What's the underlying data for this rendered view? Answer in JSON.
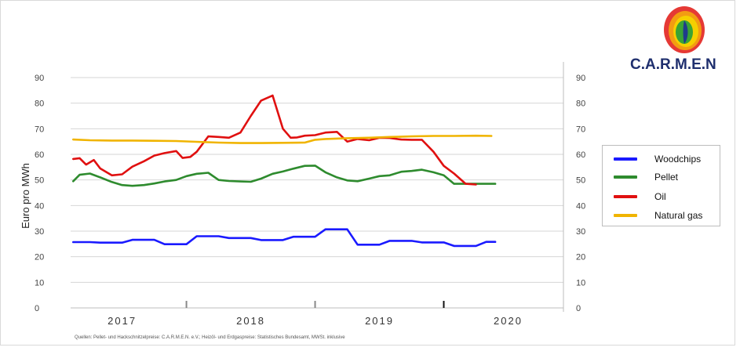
{
  "logo": {
    "text": "C.A.R.M.E.N",
    "colors": [
      "#e53935",
      "#f39c12",
      "#f5d000",
      "#3aa335",
      "#1f3b8c"
    ]
  },
  "chart_data": {
    "type": "line",
    "title": "",
    "xlabel": "",
    "ylabel": "Euro pro MWh",
    "ylim": [
      0,
      90
    ],
    "yticks": [
      0,
      10,
      20,
      30,
      40,
      50,
      60,
      70,
      80,
      90
    ],
    "y_axis_right": true,
    "grid": true,
    "legend_position": "right",
    "x_year_labels": [
      "2017",
      "2018",
      "2019",
      "2020"
    ],
    "x_range": [
      2016.6,
      2020.43
    ],
    "source_note": "Quellen: Pellet- und Hackschnitzelpreise: C.A.R.M.E.N. e.V.; Heizöl- und Erdgaspreise: Statistisches Bundesamt, MWSt. inklusive",
    "series": [
      {
        "name": "Woodchips",
        "color": "#1a1aff",
        "x": [
          2016.62,
          2016.75,
          2016.83,
          2016.92,
          2017.0,
          2017.08,
          2017.17,
          2017.25,
          2017.33,
          2017.42,
          2017.5,
          2017.58,
          2017.67,
          2017.75,
          2017.83,
          2017.92,
          2018.0,
          2018.08,
          2018.17,
          2018.25,
          2018.33,
          2018.42,
          2018.5,
          2018.58,
          2018.67,
          2018.75,
          2018.83,
          2018.92,
          2019.0,
          2019.08,
          2019.17,
          2019.25,
          2019.33,
          2019.42,
          2019.5,
          2019.58,
          2019.67,
          2019.75,
          2019.83,
          2019.9
        ],
        "values": [
          25.7,
          25.7,
          25.5,
          25.5,
          25.5,
          26.6,
          26.6,
          26.6,
          24.9,
          24.9,
          24.9,
          28.0,
          28.0,
          28.0,
          27.3,
          27.3,
          27.3,
          26.5,
          26.5,
          26.5,
          27.8,
          27.8,
          27.8,
          30.7,
          30.7,
          30.7,
          24.7,
          24.7,
          24.7,
          26.2,
          26.2,
          26.2,
          25.6,
          25.6,
          25.6,
          24.2,
          24.2,
          24.2,
          25.8,
          25.8
        ]
      },
      {
        "name": "Pellet",
        "color": "#2e8b2e",
        "x": [
          2016.62,
          2016.67,
          2016.75,
          2016.83,
          2016.92,
          2017.0,
          2017.08,
          2017.17,
          2017.25,
          2017.33,
          2017.42,
          2017.5,
          2017.58,
          2017.67,
          2017.75,
          2017.83,
          2017.92,
          2018.0,
          2018.08,
          2018.17,
          2018.25,
          2018.33,
          2018.42,
          2018.5,
          2018.58,
          2018.67,
          2018.75,
          2018.83,
          2018.92,
          2019.0,
          2019.08,
          2019.17,
          2019.25,
          2019.33,
          2019.42,
          2019.5,
          2019.58,
          2019.67,
          2019.75,
          2019.83,
          2019.9
        ],
        "values": [
          49.5,
          52.0,
          52.5,
          51.0,
          49.2,
          48.0,
          47.7,
          48.0,
          48.6,
          49.4,
          50.0,
          51.5,
          52.4,
          52.8,
          50.0,
          49.6,
          49.4,
          49.3,
          50.5,
          52.4,
          53.3,
          54.4,
          55.5,
          55.6,
          53.0,
          51.0,
          49.8,
          49.5,
          50.5,
          51.5,
          51.8,
          53.2,
          53.5,
          54.0,
          53.0,
          51.8,
          48.5,
          48.5,
          48.5,
          48.5,
          48.5
        ]
      },
      {
        "name": "Oil",
        "color": "#e01010",
        "x": [
          2016.62,
          2016.67,
          2016.72,
          2016.78,
          2016.83,
          2016.92,
          2017.0,
          2017.08,
          2017.17,
          2017.25,
          2017.33,
          2017.42,
          2017.47,
          2017.53,
          2017.58,
          2017.67,
          2017.75,
          2017.83,
          2017.92,
          2018.0,
          2018.08,
          2018.17,
          2018.25,
          2018.31,
          2018.36,
          2018.42,
          2018.5,
          2018.58,
          2018.67,
          2018.75,
          2018.83,
          2018.92,
          2019.0,
          2019.08,
          2019.17,
          2019.25,
          2019.33,
          2019.42,
          2019.5,
          2019.58,
          2019.67,
          2019.75
        ],
        "values": [
          58.2,
          58.5,
          56.0,
          57.8,
          54.5,
          51.8,
          52.2,
          55.2,
          57.3,
          59.5,
          60.5,
          61.3,
          58.6,
          59.0,
          61.0,
          67.0,
          66.8,
          66.5,
          68.5,
          75.0,
          81.0,
          83.0,
          70.0,
          66.5,
          66.6,
          67.3,
          67.5,
          68.5,
          68.8,
          65.0,
          66.0,
          65.5,
          66.5,
          66.4,
          65.8,
          65.7,
          65.7,
          61.0,
          55.5,
          52.5,
          48.5,
          48.2
        ]
      },
      {
        "name": "Natural gas",
        "color": "#f0b400",
        "x": [
          2016.62,
          2016.75,
          2016.92,
          2017.08,
          2017.25,
          2017.42,
          2017.58,
          2017.75,
          2017.92,
          2018.08,
          2018.25,
          2018.42,
          2018.5,
          2018.58,
          2018.75,
          2018.92,
          2019.08,
          2019.25,
          2019.42,
          2019.58,
          2019.75,
          2019.87
        ],
        "values": [
          65.8,
          65.5,
          65.4,
          65.4,
          65.3,
          65.2,
          64.9,
          64.6,
          64.4,
          64.4,
          64.5,
          64.6,
          65.7,
          66.0,
          66.3,
          66.5,
          66.8,
          67.0,
          67.2,
          67.2,
          67.3,
          67.2
        ]
      }
    ]
  }
}
